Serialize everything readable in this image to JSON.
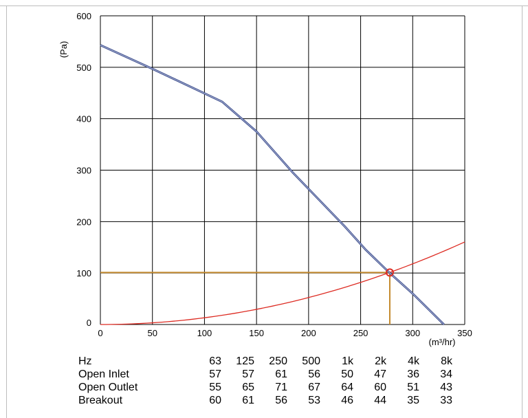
{
  "chart_data": {
    "type": "line",
    "ylabel": "(Pa)",
    "xlabel": "(m³/hr)",
    "xlim": [
      0,
      350
    ],
    "ylim": [
      0,
      600
    ],
    "x_ticks": [
      "0",
      "50",
      "100",
      "150",
      "200",
      "250",
      "300",
      "350"
    ],
    "y_ticks": [
      "0",
      "100",
      "200",
      "300",
      "400",
      "500",
      "600"
    ],
    "grid": true,
    "fan_curve": [
      [
        0,
        543
      ],
      [
        50,
        497
      ],
      [
        117,
        433
      ],
      [
        150,
        375
      ],
      [
        185,
        295
      ],
      [
        215,
        232
      ],
      [
        235,
        190
      ],
      [
        255,
        145
      ],
      [
        278,
        100
      ],
      [
        300,
        60
      ],
      [
        330,
        0
      ]
    ],
    "system_curve_k": 0.00131,
    "system_curve_xmax": 350,
    "operating_point": {
      "x": 278,
      "y": 101
    },
    "colors": {
      "fan_curve": "#3e4f8e",
      "system_curve": "#dd2b22",
      "operating_lines": "#c48a2e",
      "operating_marker": "#dd2b22",
      "grid": "#000000"
    }
  },
  "sound_table": {
    "header": [
      "Hz",
      "63",
      "125",
      "250",
      "500",
      "1k",
      "2k",
      "4k",
      "8k"
    ],
    "rows": [
      [
        "Open Inlet",
        "57",
        "57",
        "61",
        "56",
        "50",
        "47",
        "36",
        "34"
      ],
      [
        "Open Outlet",
        "55",
        "65",
        "71",
        "67",
        "64",
        "60",
        "51",
        "43"
      ],
      [
        "Breakout",
        "60",
        "61",
        "56",
        "53",
        "46",
        "44",
        "35",
        "33"
      ]
    ]
  }
}
